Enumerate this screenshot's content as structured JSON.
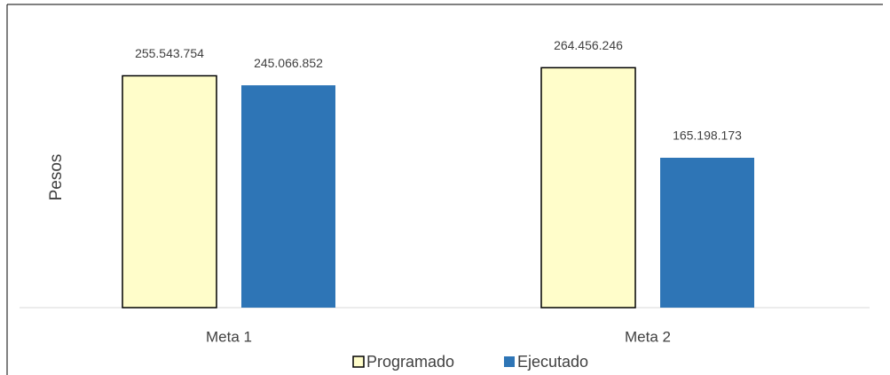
{
  "chart_data": {
    "type": "bar",
    "y_label": "Pesos",
    "categories": [
      "Meta 1",
      "Meta 2"
    ],
    "series": [
      {
        "name": "Programado",
        "color": "#fffdca",
        "values": [
          255543754,
          264456246
        ],
        "value_labels": [
          "255.543.754",
          "264.456.246"
        ]
      },
      {
        "name": "Ejecutado",
        "color": "#2e75b6",
        "values": [
          245066852,
          165198173
        ],
        "value_labels": [
          "245.066.852",
          "165.198.173"
        ]
      }
    ],
    "ylim": [
      0,
      300000000
    ]
  }
}
